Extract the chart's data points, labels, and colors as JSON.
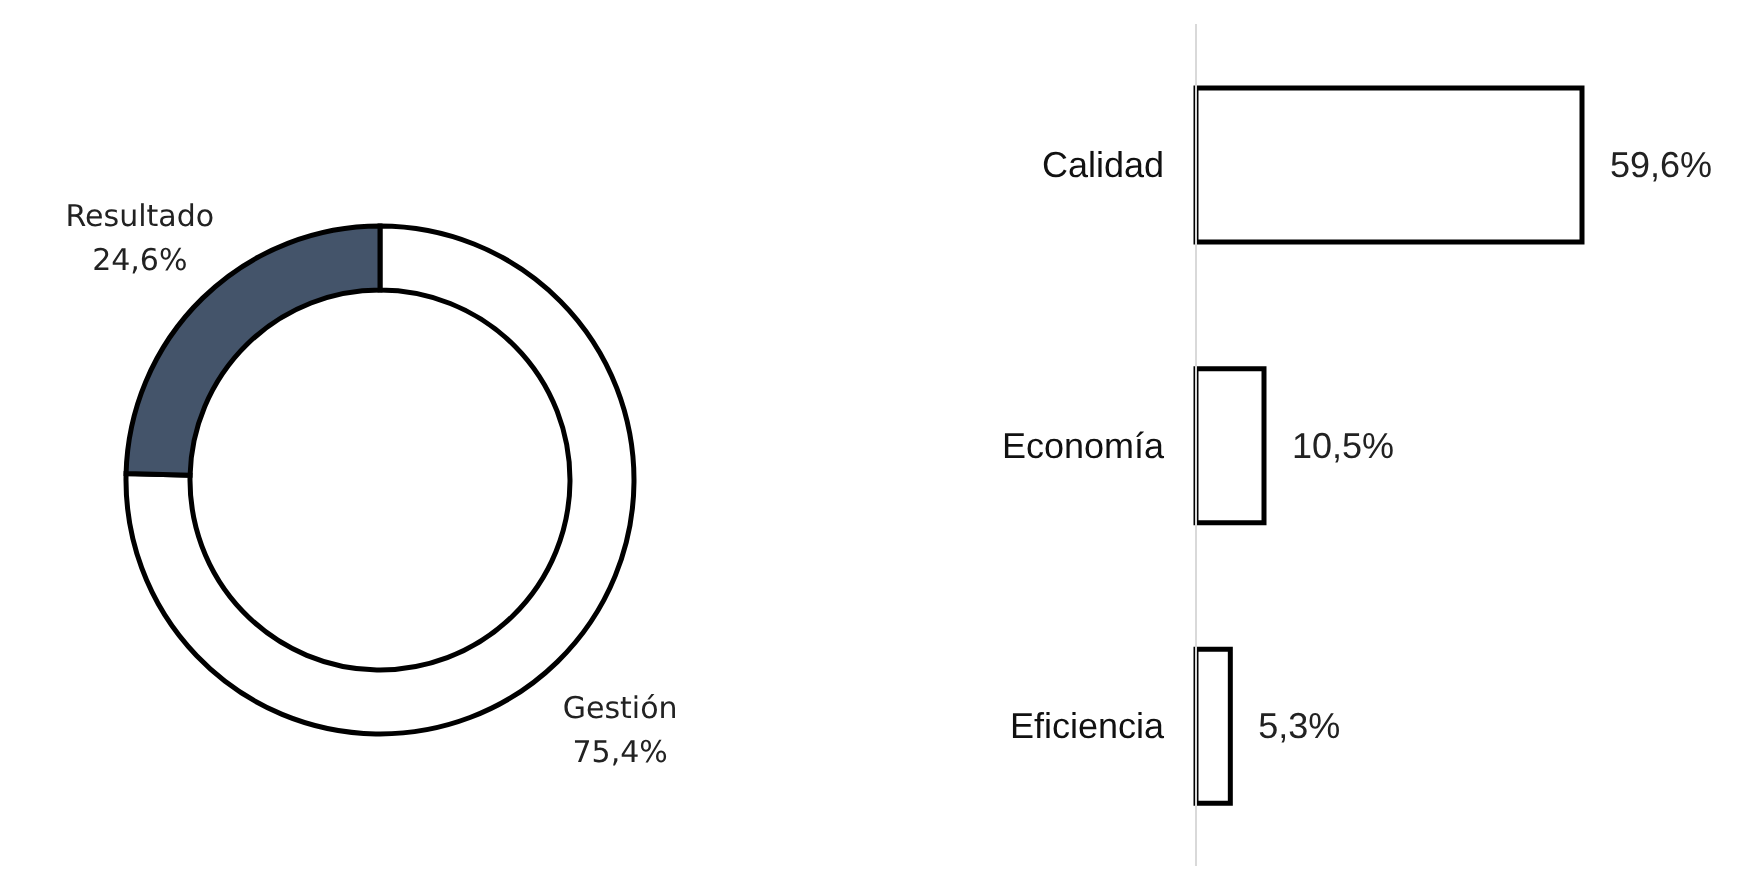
{
  "chart_data": [
    {
      "type": "donut",
      "categories": [
        "Gestión",
        "Resultado"
      ],
      "values": [
        75.4,
        24.6
      ],
      "colors": [
        "#ffffff",
        "#44546a"
      ],
      "value_labels": [
        "75,4%",
        "24,6%"
      ]
    },
    {
      "type": "bar",
      "orientation": "horizontal",
      "categories": [
        "Calidad",
        "Economía",
        "Eficiencia"
      ],
      "values": [
        59.6,
        10.5,
        5.3
      ],
      "color": "#ffffff",
      "value_labels": [
        "59,6%",
        "10,5%",
        "5,3%"
      ]
    }
  ]
}
